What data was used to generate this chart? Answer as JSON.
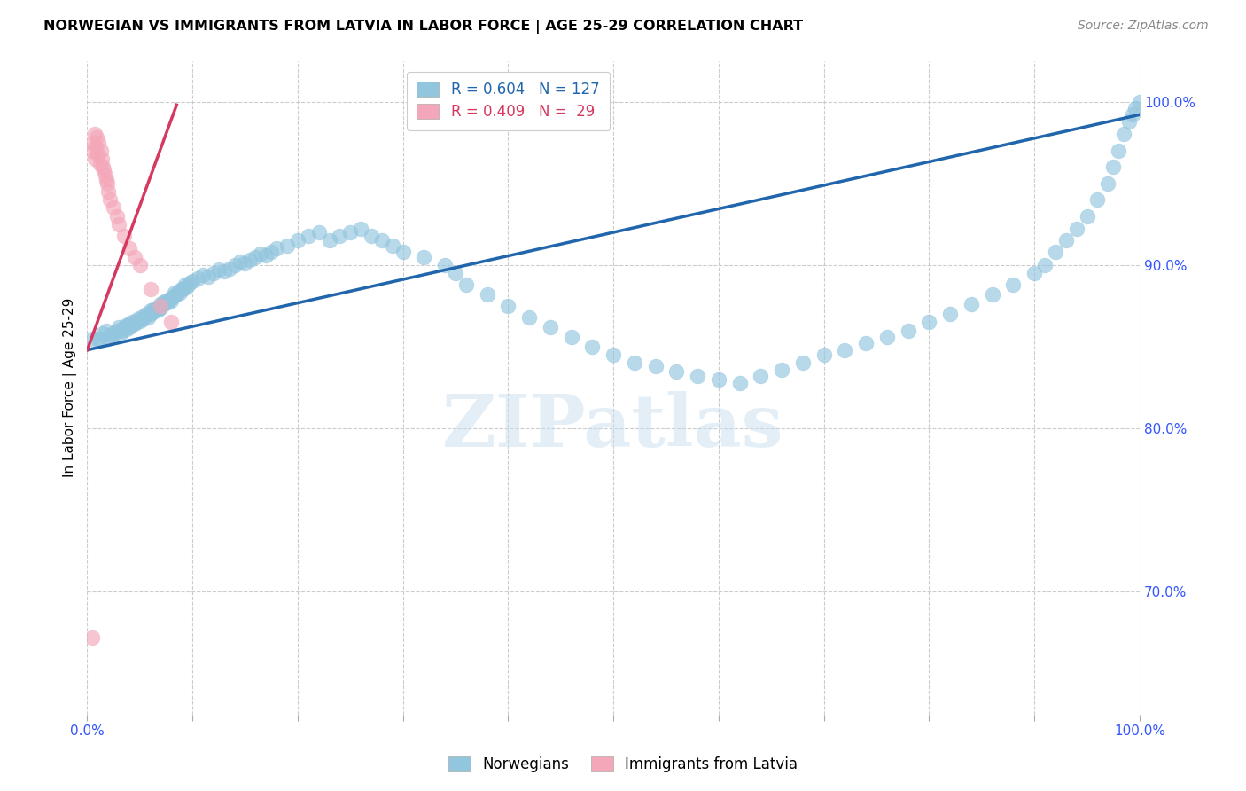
{
  "title": "NORWEGIAN VS IMMIGRANTS FROM LATVIA IN LABOR FORCE | AGE 25-29 CORRELATION CHART",
  "source": "Source: ZipAtlas.com",
  "ylabel": "In Labor Force | Age 25-29",
  "xlim": [
    0.0,
    1.0
  ],
  "ylim": [
    0.625,
    1.025
  ],
  "x_tick_positions": [
    0.0,
    0.1,
    0.2,
    0.3,
    0.4,
    0.5,
    0.6,
    0.7,
    0.8,
    0.9,
    1.0
  ],
  "x_tick_labels": [
    "0.0%",
    "",
    "",
    "",
    "",
    "",
    "",
    "",
    "",
    "",
    "100.0%"
  ],
  "y_tick_labels_right": [
    "70.0%",
    "80.0%",
    "90.0%",
    "100.0%"
  ],
  "y_ticks_right": [
    0.7,
    0.8,
    0.9,
    1.0
  ],
  "legend_label_blue": "Norwegians",
  "legend_label_pink": "Immigrants from Latvia",
  "blue_color": "#92c5de",
  "pink_color": "#f4a7b9",
  "trendline_blue_color": "#2166ac",
  "trendline_pink_color": "#d6395f",
  "watermark": "ZIPatlas",
  "blue_scatter_x": [
    0.005,
    0.01,
    0.012,
    0.015,
    0.018,
    0.02,
    0.022,
    0.025,
    0.028,
    0.03,
    0.032,
    0.033,
    0.035,
    0.037,
    0.038,
    0.04,
    0.04,
    0.042,
    0.043,
    0.045,
    0.047,
    0.048,
    0.05,
    0.051,
    0.053,
    0.055,
    0.056,
    0.058,
    0.06,
    0.06,
    0.062,
    0.063,
    0.065,
    0.066,
    0.068,
    0.07,
    0.07,
    0.072,
    0.073,
    0.075,
    0.076,
    0.078,
    0.08,
    0.08,
    0.082,
    0.083,
    0.085,
    0.087,
    0.088,
    0.09,
    0.092,
    0.093,
    0.095,
    0.097,
    0.1,
    0.105,
    0.11,
    0.115,
    0.12,
    0.125,
    0.13,
    0.135,
    0.14,
    0.145,
    0.15,
    0.155,
    0.16,
    0.165,
    0.17,
    0.175,
    0.18,
    0.19,
    0.2,
    0.21,
    0.22,
    0.23,
    0.24,
    0.25,
    0.26,
    0.27,
    0.28,
    0.29,
    0.3,
    0.32,
    0.34,
    0.35,
    0.36,
    0.38,
    0.4,
    0.42,
    0.44,
    0.46,
    0.48,
    0.5,
    0.52,
    0.54,
    0.56,
    0.58,
    0.6,
    0.62,
    0.64,
    0.66,
    0.68,
    0.7,
    0.72,
    0.74,
    0.76,
    0.78,
    0.8,
    0.82,
    0.84,
    0.86,
    0.88,
    0.9,
    0.91,
    0.92,
    0.93,
    0.94,
    0.95,
    0.96,
    0.97,
    0.975,
    0.98,
    0.985,
    0.99,
    0.993,
    0.996,
    1.0
  ],
  "blue_scatter_y": [
    0.855,
    0.855,
    0.855,
    0.858,
    0.86,
    0.855,
    0.857,
    0.858,
    0.86,
    0.862,
    0.858,
    0.86,
    0.862,
    0.863,
    0.861,
    0.862,
    0.864,
    0.863,
    0.865,
    0.864,
    0.865,
    0.867,
    0.866,
    0.868,
    0.867,
    0.869,
    0.87,
    0.868,
    0.87,
    0.872,
    0.871,
    0.873,
    0.872,
    0.874,
    0.873,
    0.876,
    0.874,
    0.877,
    0.876,
    0.878,
    0.877,
    0.879,
    0.88,
    0.878,
    0.881,
    0.883,
    0.882,
    0.884,
    0.883,
    0.885,
    0.886,
    0.888,
    0.887,
    0.889,
    0.89,
    0.892,
    0.894,
    0.893,
    0.895,
    0.897,
    0.896,
    0.898,
    0.9,
    0.902,
    0.901,
    0.903,
    0.905,
    0.907,
    0.906,
    0.908,
    0.91,
    0.912,
    0.915,
    0.918,
    0.92,
    0.915,
    0.918,
    0.92,
    0.922,
    0.918,
    0.915,
    0.912,
    0.908,
    0.905,
    0.9,
    0.895,
    0.888,
    0.882,
    0.875,
    0.868,
    0.862,
    0.856,
    0.85,
    0.845,
    0.84,
    0.838,
    0.835,
    0.832,
    0.83,
    0.828,
    0.832,
    0.836,
    0.84,
    0.845,
    0.848,
    0.852,
    0.856,
    0.86,
    0.865,
    0.87,
    0.876,
    0.882,
    0.888,
    0.895,
    0.9,
    0.908,
    0.915,
    0.922,
    0.93,
    0.94,
    0.95,
    0.96,
    0.97,
    0.98,
    0.988,
    0.992,
    0.996,
    1.0
  ],
  "pink_scatter_x": [
    0.005,
    0.006,
    0.007,
    0.007,
    0.008,
    0.009,
    0.01,
    0.011,
    0.012,
    0.013,
    0.014,
    0.015,
    0.016,
    0.017,
    0.018,
    0.019,
    0.02,
    0.022,
    0.025,
    0.028,
    0.03,
    0.035,
    0.04,
    0.045,
    0.05,
    0.06,
    0.07,
    0.08,
    0.005
  ],
  "pink_scatter_y": [
    0.97,
    0.975,
    0.98,
    0.965,
    0.972,
    0.978,
    0.968,
    0.975,
    0.962,
    0.97,
    0.965,
    0.96,
    0.958,
    0.955,
    0.952,
    0.95,
    0.945,
    0.94,
    0.935,
    0.93,
    0.925,
    0.918,
    0.91,
    0.905,
    0.9,
    0.885,
    0.875,
    0.865,
    0.672
  ],
  "blue_trend_x": [
    0.0,
    1.0
  ],
  "blue_trend_y": [
    0.848,
    0.992
  ],
  "pink_trend_x": [
    0.0,
    0.085
  ],
  "pink_trend_y": [
    0.848,
    0.998
  ]
}
